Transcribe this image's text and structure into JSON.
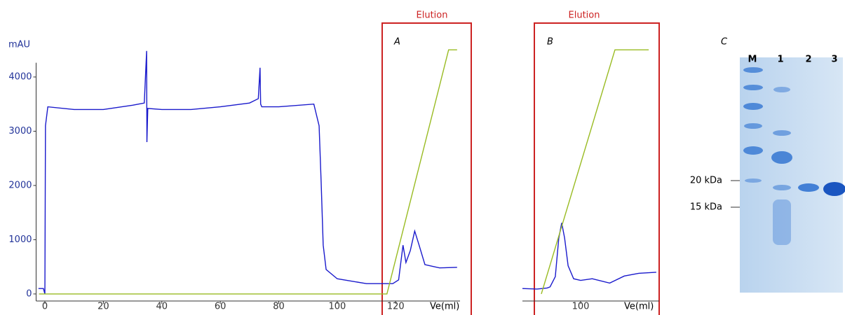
{
  "chart_data": [
    {
      "type": "line",
      "panel_label": "A",
      "annotation": "Elution",
      "ylabel": "mAU",
      "xlabel": "Ve(ml)",
      "xlim": [
        -3,
        142
      ],
      "ylim": [
        -130,
        4650
      ],
      "xticks": [
        0,
        20,
        40,
        60,
        80,
        100,
        120
      ],
      "yticks": [
        0,
        1000,
        2000,
        3000,
        4000
      ],
      "series": [
        {
          "color": "#1a1acc",
          "x": [
            -2.2,
            -0.5,
            0,
            0.2,
            1,
            10,
            20,
            30,
            34,
            34.8,
            34.9,
            35.2,
            40,
            50,
            60,
            70,
            73,
            73.6,
            73.8,
            74.2,
            80,
            92,
            93.8,
            94.5,
            95.2,
            96.2,
            100,
            110,
            119,
            121,
            122.5,
            123.5,
            125,
            126.5,
            128,
            130,
            135,
            141
          ],
          "values": [
            100,
            100,
            0,
            3100,
            3450,
            3400,
            3400,
            3480,
            3520,
            4480,
            2800,
            3420,
            3400,
            3400,
            3450,
            3520,
            3600,
            4170,
            3500,
            3450,
            3450,
            3500,
            3100,
            2060,
            900,
            450,
            280,
            190,
            190,
            260,
            900,
            580,
            800,
            1160,
            900,
            540,
            480,
            490
          ]
        },
        {
          "color": "#99bb22",
          "x": [
            -2,
            117,
            138.1,
            141
          ],
          "values": [
            0,
            0,
            4500,
            4500
          ]
        }
      ]
    },
    {
      "type": "line",
      "panel_label": "B",
      "annotation": "Elution",
      "xlabel": "Ve(ml)",
      "xlim": [
        80,
        127
      ],
      "ylim": [
        -130,
        4650
      ],
      "xticks": [
        100
      ],
      "series": [
        {
          "color": "#1a1acc",
          "x": [
            80,
            85,
            88.5,
            89.5,
            91.3,
            92.5,
            93.5,
            94.5,
            95.7,
            97.6,
            100,
            104,
            110,
            115,
            120,
            126
          ],
          "values": [
            100,
            90,
            110,
            130,
            320,
            1030,
            1310,
            1030,
            520,
            280,
            250,
            280,
            200,
            330,
            380,
            400
          ]
        },
        {
          "color": "#99bb22",
          "x": [
            86.5,
            111.8,
            123.4
          ],
          "values": [
            0,
            4500,
            4500
          ]
        }
      ]
    }
  ],
  "gel": {
    "panel_label": "C",
    "lanes": [
      "M",
      "1",
      "2",
      "3"
    ],
    "markers": [
      "20 kDa",
      "15 kDa"
    ]
  }
}
